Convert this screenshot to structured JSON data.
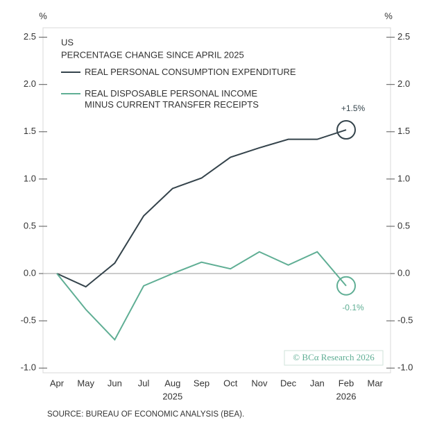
{
  "chart_data": {
    "type": "line",
    "title": "US",
    "subtitle": "PERCENTAGE CHANGE SINCE APRIL 2025",
    "y_unit": "%",
    "y2_unit": "%",
    "categories": [
      "Apr",
      "May",
      "Jun",
      "Jul",
      "Aug",
      "Sep",
      "Oct",
      "Nov",
      "Dec",
      "Jan",
      "Feb",
      "Mar"
    ],
    "year_labels": [
      {
        "label": "2025",
        "category": "Aug"
      },
      {
        "label": "2026",
        "category": "Feb"
      }
    ],
    "series": [
      {
        "name": "REAL PERSONAL CONSUMPTION EXPENDITURE",
        "color": "#34434b",
        "values": [
          0,
          -0.14,
          0.11,
          0.61,
          0.9,
          1.01,
          1.23,
          1.33,
          1.42,
          1.42,
          1.52,
          null
        ],
        "value_labels": [
          null,
          null,
          null,
          null,
          null,
          null,
          null,
          null,
          null,
          null,
          "+1.5%",
          null
        ]
      },
      {
        "name": "REAL DISPOSABLE PERSONAL INCOME\nMINUS CURRENT TRANSFER RECEIPTS",
        "color": "#5fae94",
        "values": [
          0,
          -0.38,
          -0.7,
          -0.13,
          0,
          0.12,
          0.05,
          0.23,
          0.09,
          0.23,
          -0.13,
          null
        ],
        "value_labels": [
          null,
          null,
          null,
          null,
          null,
          null,
          null,
          null,
          null,
          null,
          "-0.1%",
          null
        ]
      }
    ],
    "ylim": [
      -1.05,
      2.6
    ],
    "yticks": [
      {
        "value": -1,
        "label": "-1.0"
      },
      -0.5,
      {
        "value": 0,
        "label": "0.0"
      },
      0.5,
      {
        "value": 1,
        "label": "1.0"
      },
      1.5,
      {
        "value": 2,
        "label": "2.0"
      },
      2.5
    ],
    "y2lim": [
      -1.05,
      2.6
    ],
    "y2ticks": [
      {
        "value": -1,
        "label": "-1.0"
      },
      -0.5,
      {
        "value": 0,
        "label": "0.0"
      },
      0.5,
      {
        "value": 1,
        "label": "1.0"
      },
      1.5,
      {
        "value": 2,
        "label": "2.0"
      },
      2.5
    ],
    "watermark": "© BCα Research 2026",
    "source": "SOURCE: BUREAU OF ECONOMIC ANALYSIS (BEA)."
  }
}
